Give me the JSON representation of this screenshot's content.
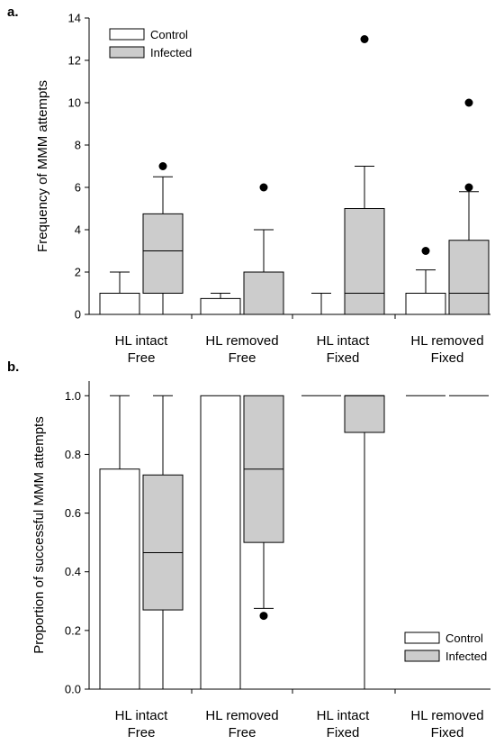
{
  "colors": {
    "control": "#ffffff",
    "infected": "#cccccc",
    "stroke": "#000000"
  },
  "chart_data": [
    {
      "type": "box",
      "panel_label": "a.",
      "ylabel": "Frequency of MMM attempts",
      "ylim": [
        0,
        14
      ],
      "yticks": [
        "0",
        "2",
        "4",
        "6",
        "8",
        "10",
        "12",
        "14"
      ],
      "categories": [
        [
          "HL intact",
          "Free"
        ],
        [
          "HL removed",
          "Free"
        ],
        [
          "HL intact",
          "Fixed"
        ],
        [
          "HL removed",
          "Fixed"
        ]
      ],
      "legend_position": "top-left",
      "series": [
        {
          "name": "Control",
          "boxes": [
            {
              "min": 0,
              "q1": 0,
              "median": 0,
              "q3": 1,
              "max": 2,
              "outliers": []
            },
            {
              "min": 0,
              "q1": 0,
              "median": 0,
              "q3": 0.75,
              "max": 1,
              "outliers": []
            },
            {
              "min": 0,
              "q1": 0,
              "median": 0,
              "q3": 0,
              "max": 1,
              "outliers": []
            },
            {
              "min": 0,
              "q1": 0,
              "median": 0,
              "q3": 1,
              "max": 2.1,
              "outliers": [
                3
              ]
            }
          ]
        },
        {
          "name": "Infected",
          "boxes": [
            {
              "min": 0,
              "q1": 1,
              "median": 3,
              "q3": 4.75,
              "max": 6.5,
              "outliers": [
                7
              ]
            },
            {
              "min": 0,
              "q1": 0,
              "median": 0,
              "q3": 2,
              "max": 4,
              "outliers": [
                6
              ]
            },
            {
              "min": 0,
              "q1": 0,
              "median": 1,
              "q3": 5,
              "max": 7,
              "outliers": [
                13
              ]
            },
            {
              "min": 0,
              "q1": 0,
              "median": 1,
              "q3": 3.5,
              "max": 5.8,
              "outliers": [
                6,
                10
              ]
            }
          ]
        }
      ]
    },
    {
      "type": "box",
      "panel_label": "b.",
      "ylabel": "Proportion of successful MMM attempts",
      "ylim": [
        0,
        1.05
      ],
      "yticks": [
        "0.0",
        "0.2",
        "0.4",
        "0.6",
        "0.8",
        "1.0"
      ],
      "categories": [
        [
          "HL intact",
          "Free"
        ],
        [
          "HL removed",
          "Free"
        ],
        [
          "HL intact",
          "Fixed"
        ],
        [
          "HL removed",
          "Fixed"
        ]
      ],
      "legend_position": "bottom-right",
      "series": [
        {
          "name": "Control",
          "boxes": [
            {
              "min": 0,
              "q1": 0,
              "median": 0,
              "q3": 0.75,
              "max": 1,
              "outliers": []
            },
            {
              "min": 0,
              "q1": 0,
              "median": 0,
              "q3": 1,
              "max": 1,
              "outliers": []
            },
            {
              "min": 1,
              "q1": 1,
              "median": 1,
              "q3": 1,
              "max": 1,
              "outliers": []
            },
            {
              "min": 1,
              "q1": 1,
              "median": 1,
              "q3": 1,
              "max": 1,
              "outliers": []
            }
          ]
        },
        {
          "name": "Infected",
          "boxes": [
            {
              "min": 0,
              "q1": 0.27,
              "median": 0.465,
              "q3": 0.73,
              "max": 1,
              "outliers": []
            },
            {
              "min": 0.275,
              "q1": 0.5,
              "median": 0.75,
              "q3": 1,
              "max": 1,
              "outliers": [
                0.25
              ]
            },
            {
              "min": 0,
              "q1": 0.875,
              "median": 1,
              "q3": 1,
              "max": 1,
              "outliers": []
            },
            {
              "min": 1,
              "q1": 1,
              "median": 1,
              "q3": 1,
              "max": 1,
              "outliers": []
            }
          ]
        }
      ]
    }
  ]
}
